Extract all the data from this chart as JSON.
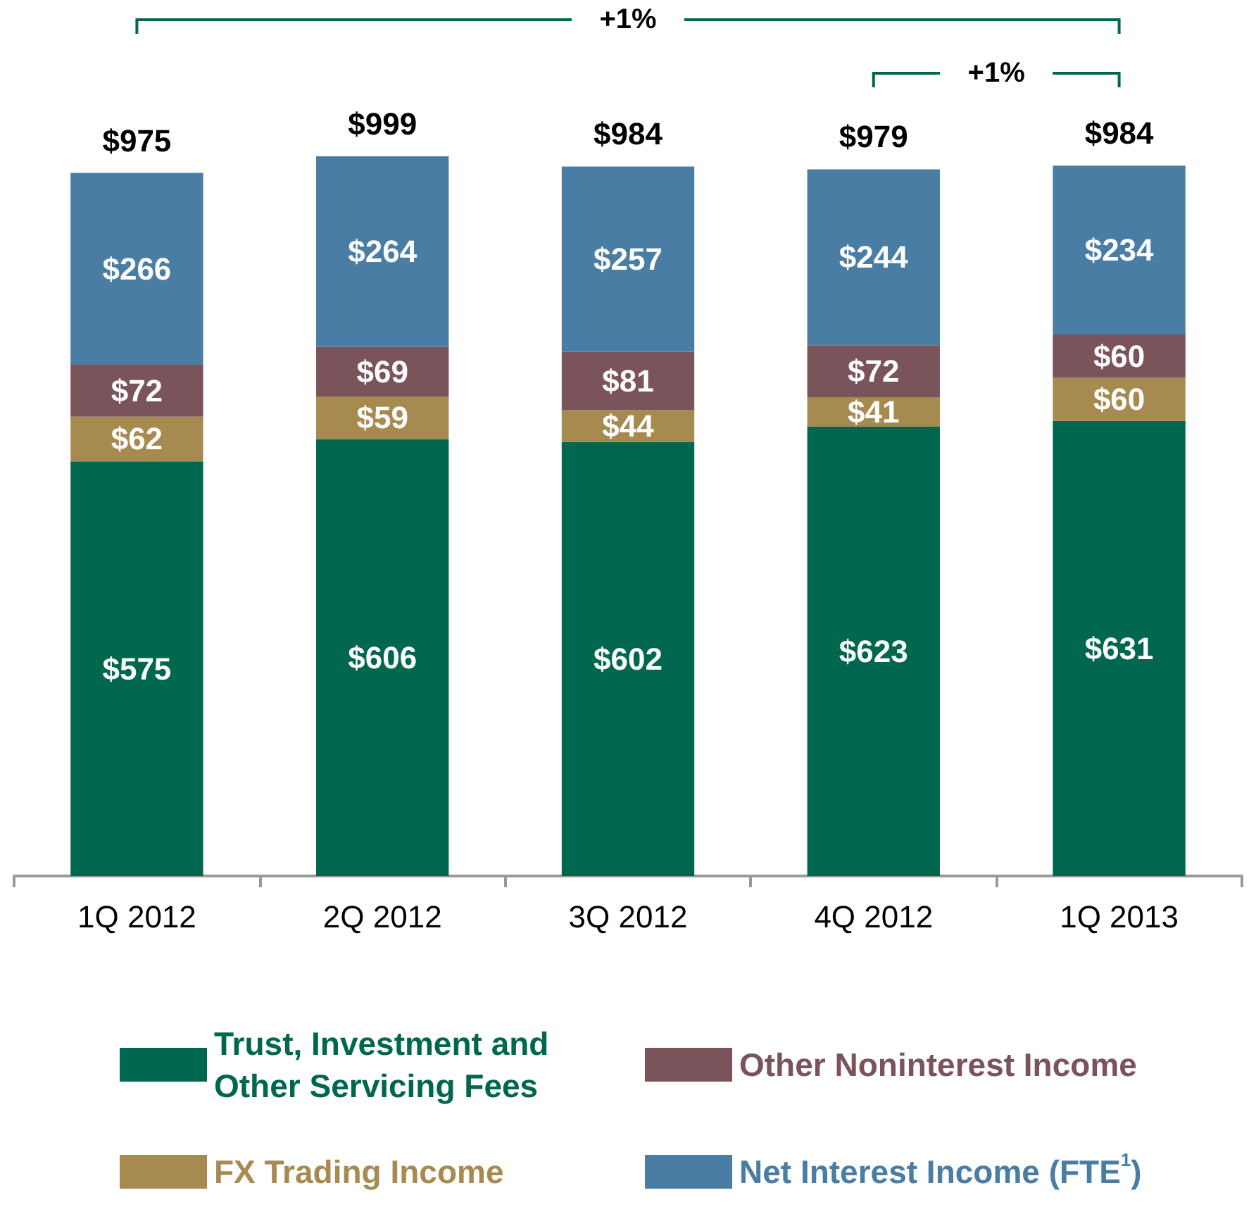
{
  "chart_data": {
    "type": "bar",
    "stacked": true,
    "categories": [
      "1Q 2012",
      "2Q 2012",
      "3Q 2012",
      "4Q 2012",
      "1Q 2013"
    ],
    "series": [
      {
        "name": "Trust, Investment and Other Servicing Fees",
        "color": "#00674f",
        "values": [
          575,
          606,
          602,
          623,
          631
        ],
        "value_labels": [
          "$575",
          "$606",
          "$602",
          "$623",
          "$631"
        ]
      },
      {
        "name": "FX Trading Income",
        "color": "#a68a50",
        "values": [
          62,
          59,
          44,
          41,
          60
        ],
        "value_labels": [
          "$62",
          "$59",
          "$44",
          "$41",
          "$60"
        ]
      },
      {
        "name": "Other Noninterest Income",
        "color": "#7a535b",
        "values": [
          72,
          69,
          81,
          72,
          60
        ],
        "value_labels": [
          "$72",
          "$69",
          "$81",
          "$72",
          "$60"
        ]
      },
      {
        "name": "Net Interest Income (FTE$^{1}$)",
        "color": "#4a7da3",
        "values": [
          266,
          264,
          257,
          244,
          234
        ],
        "value_labels": [
          "$266",
          "$264",
          "$257",
          "$244",
          "$234"
        ]
      }
    ],
    "totals": [
      "$975",
      "$999",
      "$984",
      "$979",
      "$984"
    ],
    "annotations": [
      "+1%",
      "+1%"
    ],
    "legend": "bottom"
  }
}
